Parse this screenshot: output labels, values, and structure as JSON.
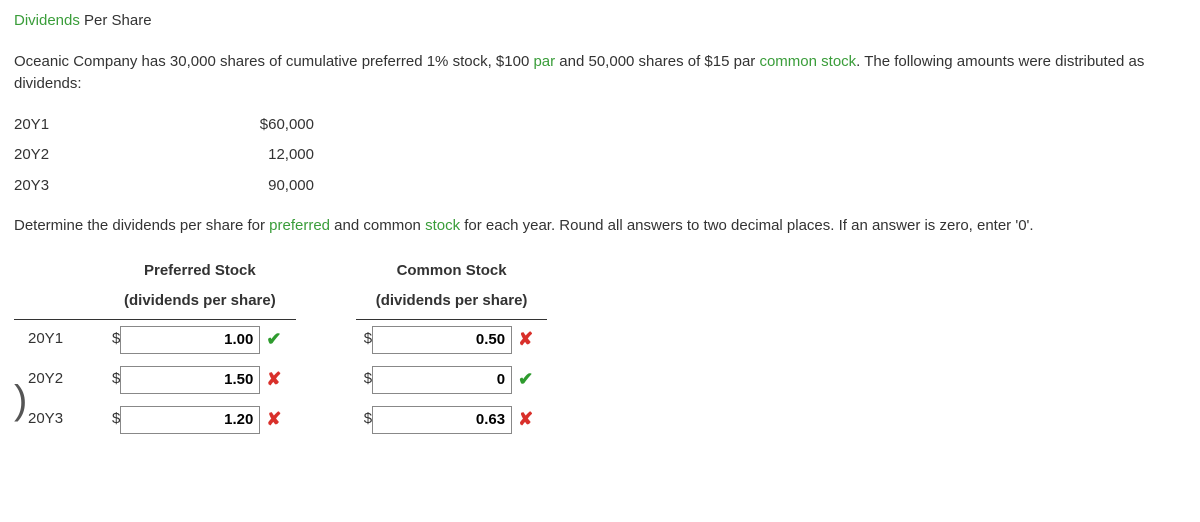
{
  "title": {
    "green": "Dividends",
    "rest": " Per Share"
  },
  "intro": {
    "p1_a": "Oceanic Company has 30,000 shares of cumulative preferred 1% stock, $100 ",
    "par": "par",
    "p1_b": " and 50,000 shares of $15 par ",
    "common": "common stock",
    "p1_c": ". The following amounts were distributed as dividends:"
  },
  "dist": {
    "rows": [
      {
        "year": "20Y1",
        "amount": "$60,000"
      },
      {
        "year": "20Y2",
        "amount": "12,000"
      },
      {
        "year": "20Y3",
        "amount": "90,000"
      }
    ]
  },
  "instruction": {
    "a": "Determine the dividends per share for ",
    "preferred": "preferred",
    "b": " and common ",
    "stock": "stock",
    "c": " for each year. Round all answers to two decimal places. If an answer is zero, enter '0'."
  },
  "headers": {
    "pref1": "Preferred Stock",
    "pref2": "(dividends per share)",
    "com1": "Common Stock",
    "com2": "(dividends per share)"
  },
  "answers": {
    "rows": [
      {
        "year": "20Y1",
        "pref_val": "1.00",
        "pref_ok": true,
        "com_val": "0.50",
        "com_ok": false,
        "paren": false
      },
      {
        "year": "20Y2",
        "pref_val": "1.50",
        "pref_ok": false,
        "com_val": "0",
        "com_ok": true,
        "paren": true
      },
      {
        "year": "20Y3",
        "pref_val": "1.20",
        "pref_ok": false,
        "com_val": "0.63",
        "com_ok": false,
        "paren": false
      }
    ]
  },
  "glyphs": {
    "dollar": "$",
    "check": "✔",
    "cross": "✘"
  },
  "colors": {
    "green": "#3a9d3a",
    "check": "#2e9b2e",
    "cross": "#d9302b"
  }
}
